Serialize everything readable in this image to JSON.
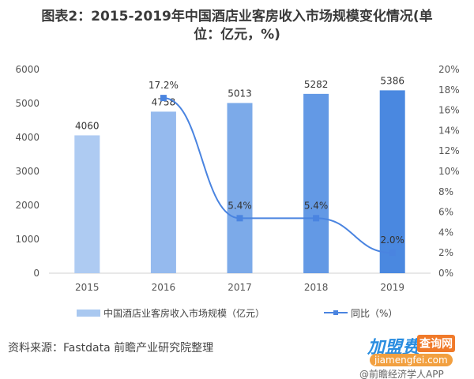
{
  "title_line1": "图表2：2015-2019年中国酒店业客房收入市场规模变化情况(单",
  "title_line2": "位：亿元，%)",
  "source": "资料来源：Fastdata  前瞻产业研究院整理",
  "watermark": {
    "brand": "加盟费",
    "tag": "查询网",
    "url": "jiamengfei.com",
    "credit": "@前瞻经济学人APP"
  },
  "colors": {
    "bar_light": "#aecbf2",
    "bar_dark": "#4a88e0",
    "line": "#4a84e0"
  },
  "chart_data": {
    "type": "bar+line",
    "categories": [
      "2015",
      "2016",
      "2017",
      "2018",
      "2019"
    ],
    "series": [
      {
        "name": "中国酒店业客房收入市场规模（亿元）",
        "type": "bar",
        "axis": "left",
        "values": [
          4060,
          4758,
          5013,
          5282,
          5386
        ]
      },
      {
        "name": "同比（%）",
        "type": "line",
        "axis": "right",
        "values": [
          null,
          17.2,
          5.4,
          5.4,
          2.0
        ],
        "labels": [
          "",
          "17.2%",
          "5.4%",
          "5.4%",
          "2.0%"
        ]
      }
    ],
    "ylim": [
      0,
      6000
    ],
    "yticks": [
      "0",
      "1000",
      "2000",
      "3000",
      "4000",
      "5000",
      "6000"
    ],
    "y2lim": [
      0,
      20
    ],
    "y2ticks": [
      "0%",
      "2%",
      "4%",
      "6%",
      "8%",
      "10%",
      "12%",
      "14%",
      "16%",
      "18%",
      "20%"
    ],
    "legend": "bottom",
    "grid": false
  }
}
